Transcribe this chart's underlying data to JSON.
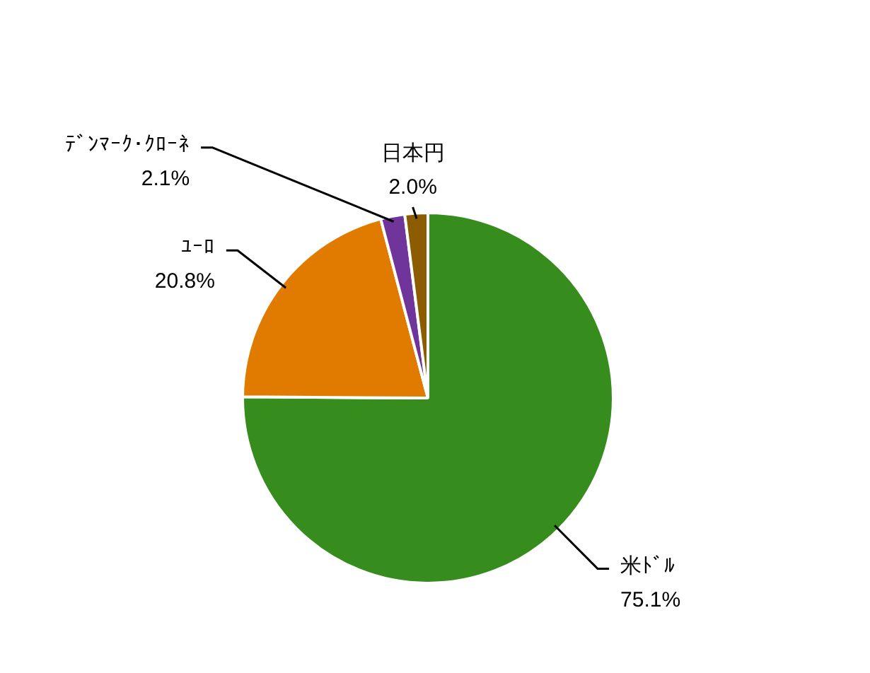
{
  "chart_data": {
    "type": "pie",
    "categories": [
      "米ﾄﾞﾙ",
      "ﾕｰﾛ",
      "ﾃﾞﾝﾏｰｸ･ｸﾛｰﾈ",
      "日本円"
    ],
    "values": [
      75.1,
      20.8,
      2.1,
      2.0
    ],
    "value_labels": [
      "75.1%",
      "20.8%",
      "2.1%",
      "2.0%"
    ],
    "colors": [
      "#368c1c",
      "#e17b00",
      "#70359a",
      "#8b5c00"
    ]
  }
}
